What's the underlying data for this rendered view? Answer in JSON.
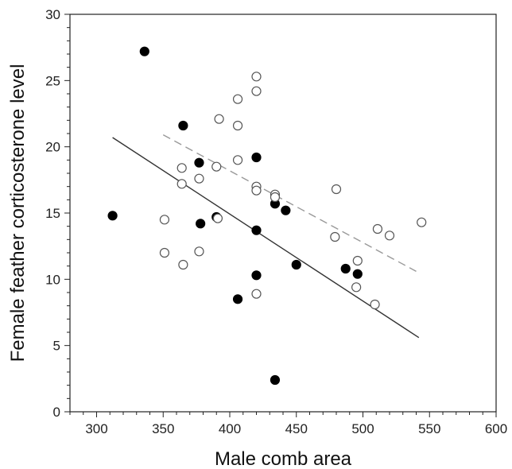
{
  "chart_data": {
    "type": "scatter",
    "title": "",
    "xlabel": "Male comb area",
    "ylabel": "Female feather corticosterone level",
    "xlim": [
      280,
      600
    ],
    "ylim": [
      0,
      30
    ],
    "x_ticks": [
      300,
      350,
      400,
      450,
      500,
      550,
      600
    ],
    "y_ticks": [
      0,
      5,
      10,
      15,
      20,
      25,
      30
    ],
    "x_tick_labels": [
      "300",
      "350",
      "400",
      "450",
      "500",
      "550",
      "600"
    ],
    "y_tick_labels": [
      "0",
      "5",
      "10",
      "15",
      "20",
      "25",
      "30"
    ],
    "grid": false,
    "legend": "none",
    "colors": {
      "filled": "#000000",
      "open": "#555555",
      "solid_line": "#333333",
      "dashed_line": "#999999"
    },
    "series": [
      {
        "marker": "filled-circle",
        "points": [
          [
            336,
            27.2
          ],
          [
            365,
            21.6
          ],
          [
            312,
            14.8
          ],
          [
            377,
            18.8
          ],
          [
            378,
            14.2
          ],
          [
            390,
            14.7
          ],
          [
            406,
            8.5
          ],
          [
            420,
            19.2
          ],
          [
            420,
            13.7
          ],
          [
            420,
            10.3
          ],
          [
            434,
            15.7
          ],
          [
            442,
            15.2
          ],
          [
            434,
            2.4
          ],
          [
            450,
            11.1
          ],
          [
            487,
            10.8
          ],
          [
            496,
            10.4
          ]
        ]
      },
      {
        "marker": "open-circle",
        "points": [
          [
            420,
            25.3
          ],
          [
            420,
            24.2
          ],
          [
            406,
            23.6
          ],
          [
            392,
            22.1
          ],
          [
            406,
            21.6
          ],
          [
            406,
            19.0
          ],
          [
            390,
            18.5
          ],
          [
            364,
            18.4
          ],
          [
            377,
            17.6
          ],
          [
            364,
            17.2
          ],
          [
            420,
            17.0
          ],
          [
            420,
            16.7
          ],
          [
            434,
            16.4
          ],
          [
            434,
            16.2
          ],
          [
            480,
            16.8
          ],
          [
            351,
            14.5
          ],
          [
            391,
            14.6
          ],
          [
            351,
            12.0
          ],
          [
            377,
            12.1
          ],
          [
            365,
            11.1
          ],
          [
            420,
            8.9
          ],
          [
            479,
            13.2
          ],
          [
            511,
            13.8
          ],
          [
            520,
            13.3
          ],
          [
            544,
            14.3
          ],
          [
            496,
            11.4
          ],
          [
            495,
            9.4
          ],
          [
            509,
            8.1
          ]
        ]
      }
    ],
    "trend_lines": [
      {
        "style": "solid",
        "x": [
          312,
          542
        ],
        "y": [
          20.7,
          5.6
        ]
      },
      {
        "style": "dashed",
        "x": [
          350,
          540
        ],
        "y": [
          20.9,
          10.6
        ]
      }
    ]
  }
}
